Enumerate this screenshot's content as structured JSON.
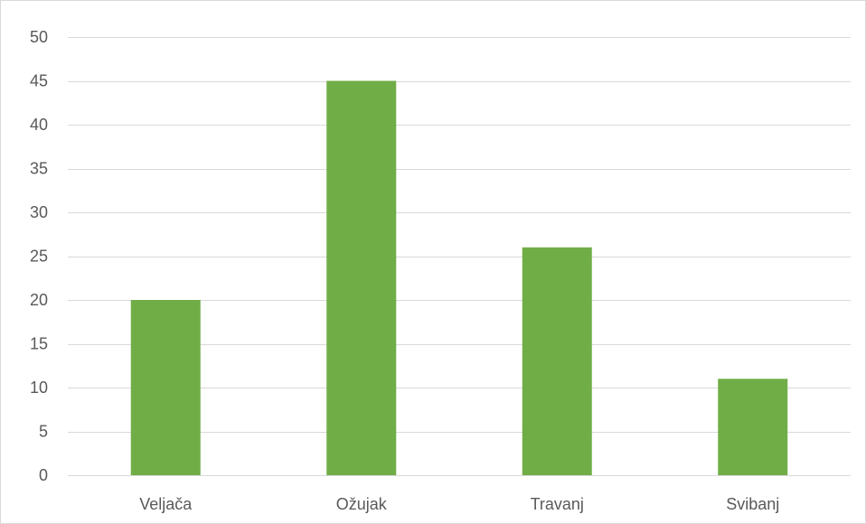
{
  "chart_data": {
    "type": "bar",
    "categories": [
      "Veljača",
      "Ožujak",
      "Travanj",
      "Svibanj"
    ],
    "values": [
      20,
      45,
      26,
      11
    ],
    "ylim": [
      0,
      50
    ],
    "yticks": [
      0,
      5,
      10,
      15,
      20,
      25,
      30,
      35,
      40,
      45,
      50
    ],
    "title": "",
    "xlabel": "",
    "ylabel": "",
    "grid": true,
    "legend": "none",
    "bar_color": "#70ad47",
    "grid_color": "#d9d9d9"
  }
}
